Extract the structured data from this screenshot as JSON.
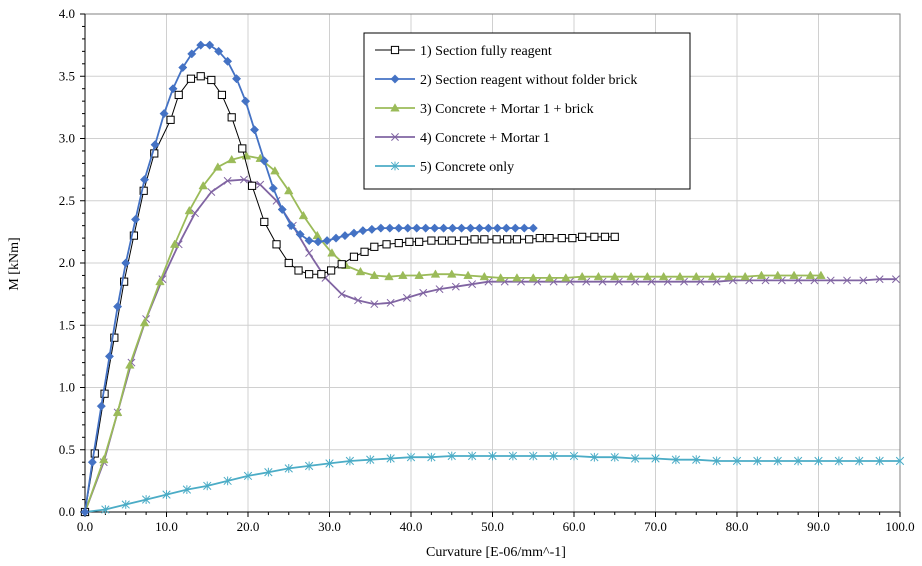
{
  "chart_data": {
    "type": "line",
    "title": "",
    "xlabel": "Curvature  [E-06/mm^-1]",
    "ylabel": "M  [kNm]",
    "xlim": [
      0,
      100
    ],
    "ylim": [
      0,
      4
    ],
    "xticks": [
      "0.0",
      "10.0",
      "20.0",
      "30.0",
      "40.0",
      "50.0",
      "60.0",
      "70.0",
      "80.0",
      "90.0",
      "100.0"
    ],
    "yticks": [
      "0.0",
      "0.5",
      "1.0",
      "1.5",
      "2.0",
      "2.5",
      "3.0",
      "3.5",
      "4.0"
    ],
    "grid": true,
    "legend_position": "top-right",
    "series": [
      {
        "name": "1) Section fully reagent",
        "color": "#000000",
        "marker": "square-open",
        "points": [
          [
            0,
            0
          ],
          [
            1.2,
            0.47
          ],
          [
            2.4,
            0.95
          ],
          [
            3.6,
            1.4
          ],
          [
            4.8,
            1.85
          ],
          [
            6.0,
            2.22
          ],
          [
            7.2,
            2.58
          ],
          [
            8.5,
            2.88
          ],
          [
            10.5,
            3.15
          ],
          [
            11.5,
            3.35
          ],
          [
            13,
            3.48
          ],
          [
            14.2,
            3.5
          ],
          [
            15.5,
            3.47
          ],
          [
            16.8,
            3.35
          ],
          [
            18,
            3.17
          ],
          [
            19.3,
            2.92
          ],
          [
            20.5,
            2.62
          ],
          [
            22,
            2.33
          ],
          [
            23.5,
            2.15
          ],
          [
            25,
            2.0
          ],
          [
            26.2,
            1.94
          ],
          [
            27.5,
            1.91
          ],
          [
            29,
            1.91
          ],
          [
            30.2,
            1.94
          ],
          [
            31.5,
            1.99
          ],
          [
            33,
            2.05
          ],
          [
            34.3,
            2.09
          ],
          [
            35.5,
            2.13
          ],
          [
            37,
            2.15
          ],
          [
            38.5,
            2.16
          ],
          [
            39.8,
            2.17
          ],
          [
            41,
            2.17
          ],
          [
            42.5,
            2.18
          ],
          [
            43.8,
            2.18
          ],
          [
            45,
            2.18
          ],
          [
            46.5,
            2.18
          ],
          [
            47.8,
            2.19
          ],
          [
            49,
            2.19
          ],
          [
            50.5,
            2.19
          ],
          [
            51.8,
            2.19
          ],
          [
            53,
            2.19
          ],
          [
            54.5,
            2.19
          ],
          [
            55.8,
            2.2
          ],
          [
            57,
            2.2
          ],
          [
            58.5,
            2.2
          ],
          [
            59.8,
            2.2
          ],
          [
            61,
            2.21
          ],
          [
            62.5,
            2.21
          ],
          [
            63.8,
            2.21
          ],
          [
            65,
            2.21
          ]
        ]
      },
      {
        "name": "2) Section reagent without folder brick",
        "color": "#4472C4",
        "marker": "diamond",
        "points": [
          [
            0,
            0
          ],
          [
            0.9,
            0.4
          ],
          [
            2,
            0.85
          ],
          [
            3,
            1.25
          ],
          [
            4,
            1.65
          ],
          [
            5,
            2.0
          ],
          [
            6.2,
            2.35
          ],
          [
            7.3,
            2.67
          ],
          [
            8.6,
            2.95
          ],
          [
            9.7,
            3.2
          ],
          [
            10.8,
            3.4
          ],
          [
            12,
            3.57
          ],
          [
            13.1,
            3.68
          ],
          [
            14.2,
            3.75
          ],
          [
            15.3,
            3.75
          ],
          [
            16.4,
            3.7
          ],
          [
            17.5,
            3.62
          ],
          [
            18.6,
            3.48
          ],
          [
            19.7,
            3.3
          ],
          [
            20.8,
            3.07
          ],
          [
            22,
            2.82
          ],
          [
            23.1,
            2.6
          ],
          [
            24.2,
            2.43
          ],
          [
            25.3,
            2.3
          ],
          [
            26.4,
            2.23
          ],
          [
            27.5,
            2.18
          ],
          [
            28.6,
            2.17
          ],
          [
            29.7,
            2.18
          ],
          [
            30.8,
            2.2
          ],
          [
            31.9,
            2.22
          ],
          [
            33,
            2.24
          ],
          [
            34.1,
            2.26
          ],
          [
            35.2,
            2.27
          ],
          [
            36.3,
            2.28
          ],
          [
            37.4,
            2.28
          ],
          [
            38.5,
            2.28
          ],
          [
            39.6,
            2.28
          ],
          [
            40.7,
            2.28
          ],
          [
            41.8,
            2.28
          ],
          [
            42.9,
            2.28
          ],
          [
            44,
            2.28
          ],
          [
            45.1,
            2.28
          ],
          [
            46.2,
            2.28
          ],
          [
            47.3,
            2.28
          ],
          [
            48.4,
            2.28
          ],
          [
            49.5,
            2.28
          ],
          [
            50.6,
            2.28
          ],
          [
            51.7,
            2.28
          ],
          [
            52.8,
            2.28
          ],
          [
            53.9,
            2.28
          ],
          [
            55,
            2.28
          ]
        ]
      },
      {
        "name": "3) Concrete + Mortar 1 + brick",
        "color": "#9BBB59",
        "marker": "triangle",
        "points": [
          [
            0,
            0
          ],
          [
            2.3,
            0.42
          ],
          [
            4,
            0.8
          ],
          [
            5.5,
            1.18
          ],
          [
            7.3,
            1.52
          ],
          [
            9.2,
            1.85
          ],
          [
            11,
            2.15
          ],
          [
            12.8,
            2.42
          ],
          [
            14.5,
            2.62
          ],
          [
            16.3,
            2.77
          ],
          [
            18,
            2.83
          ],
          [
            19.8,
            2.86
          ],
          [
            21.5,
            2.84
          ],
          [
            23.3,
            2.74
          ],
          [
            25,
            2.58
          ],
          [
            26.8,
            2.38
          ],
          [
            28.5,
            2.22
          ],
          [
            30.3,
            2.08
          ],
          [
            32,
            1.98
          ],
          [
            33.8,
            1.93
          ],
          [
            35.5,
            1.9
          ],
          [
            37.3,
            1.89
          ],
          [
            39,
            1.9
          ],
          [
            41,
            1.9
          ],
          [
            43,
            1.91
          ],
          [
            45,
            1.91
          ],
          [
            47,
            1.9
          ],
          [
            49,
            1.89
          ],
          [
            51,
            1.88
          ],
          [
            53,
            1.88
          ],
          [
            55,
            1.88
          ],
          [
            57,
            1.88
          ],
          [
            59,
            1.88
          ],
          [
            61,
            1.89
          ],
          [
            63,
            1.89
          ],
          [
            65,
            1.89
          ],
          [
            67,
            1.89
          ],
          [
            69,
            1.89
          ],
          [
            71,
            1.89
          ],
          [
            73,
            1.89
          ],
          [
            75,
            1.89
          ],
          [
            77,
            1.89
          ],
          [
            79,
            1.89
          ],
          [
            81,
            1.89
          ],
          [
            83,
            1.9
          ],
          [
            85,
            1.9
          ],
          [
            87,
            1.9
          ],
          [
            89,
            1.9
          ],
          [
            90.3,
            1.9
          ]
        ]
      },
      {
        "name": "4) Concrete + Mortar 1",
        "color": "#8064A2",
        "marker": "x",
        "points": [
          [
            0,
            0
          ],
          [
            2.3,
            0.4
          ],
          [
            4,
            0.8
          ],
          [
            5.7,
            1.2
          ],
          [
            7.5,
            1.55
          ],
          [
            9.5,
            1.87
          ],
          [
            11.5,
            2.15
          ],
          [
            13.5,
            2.4
          ],
          [
            15.5,
            2.57
          ],
          [
            17.5,
            2.66
          ],
          [
            19.5,
            2.67
          ],
          [
            21.5,
            2.63
          ],
          [
            23.5,
            2.5
          ],
          [
            25.5,
            2.3
          ],
          [
            27.5,
            2.08
          ],
          [
            29.5,
            1.88
          ],
          [
            31.5,
            1.75
          ],
          [
            33.5,
            1.7
          ],
          [
            35.5,
            1.67
          ],
          [
            37.5,
            1.68
          ],
          [
            39.5,
            1.72
          ],
          [
            41.5,
            1.76
          ],
          [
            43.5,
            1.79
          ],
          [
            45.5,
            1.81
          ],
          [
            47.5,
            1.83
          ],
          [
            49.5,
            1.85
          ],
          [
            51.5,
            1.85
          ],
          [
            53.5,
            1.85
          ],
          [
            55.5,
            1.85
          ],
          [
            57.5,
            1.85
          ],
          [
            59.5,
            1.85
          ],
          [
            61.5,
            1.85
          ],
          [
            63.5,
            1.85
          ],
          [
            65.5,
            1.85
          ],
          [
            67.5,
            1.85
          ],
          [
            69.5,
            1.85
          ],
          [
            71.5,
            1.85
          ],
          [
            73.5,
            1.85
          ],
          [
            75.5,
            1.85
          ],
          [
            77.5,
            1.85
          ],
          [
            79.5,
            1.86
          ],
          [
            81.5,
            1.86
          ],
          [
            83.5,
            1.86
          ],
          [
            85.5,
            1.86
          ],
          [
            87.5,
            1.86
          ],
          [
            89.5,
            1.86
          ],
          [
            91.5,
            1.86
          ],
          [
            93.5,
            1.86
          ],
          [
            95.5,
            1.86
          ],
          [
            97.5,
            1.87
          ],
          [
            99.5,
            1.87
          ]
        ]
      },
      {
        "name": "5) Concrete only",
        "color": "#4BACC6",
        "marker": "asterisk",
        "points": [
          [
            0,
            0
          ],
          [
            2.5,
            0.02
          ],
          [
            5,
            0.06
          ],
          [
            7.5,
            0.1
          ],
          [
            10,
            0.14
          ],
          [
            12.5,
            0.18
          ],
          [
            15,
            0.21
          ],
          [
            17.5,
            0.25
          ],
          [
            20,
            0.29
          ],
          [
            22.5,
            0.32
          ],
          [
            25,
            0.35
          ],
          [
            27.5,
            0.37
          ],
          [
            30,
            0.39
          ],
          [
            32.5,
            0.41
          ],
          [
            35,
            0.42
          ],
          [
            37.5,
            0.43
          ],
          [
            40,
            0.44
          ],
          [
            42.5,
            0.44
          ],
          [
            45,
            0.45
          ],
          [
            47.5,
            0.45
          ],
          [
            50,
            0.45
          ],
          [
            52.5,
            0.45
          ],
          [
            55,
            0.45
          ],
          [
            57.5,
            0.45
          ],
          [
            60,
            0.45
          ],
          [
            62.5,
            0.44
          ],
          [
            65,
            0.44
          ],
          [
            67.5,
            0.43
          ],
          [
            70,
            0.43
          ],
          [
            72.5,
            0.42
          ],
          [
            75,
            0.42
          ],
          [
            77.5,
            0.41
          ],
          [
            80,
            0.41
          ],
          [
            82.5,
            0.41
          ],
          [
            85,
            0.41
          ],
          [
            87.5,
            0.41
          ],
          [
            90,
            0.41
          ],
          [
            92.5,
            0.41
          ],
          [
            95,
            0.41
          ],
          [
            97.5,
            0.41
          ],
          [
            100,
            0.41
          ]
        ]
      }
    ]
  }
}
